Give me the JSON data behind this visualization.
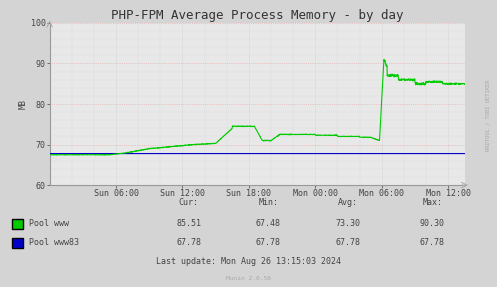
{
  "title": "PHP-FPM Average Process Memory - by day",
  "ylabel": "MB",
  "bg_color": "#d4d4d4",
  "plot_bg_color": "#e8e8e8",
  "ylim": [
    60,
    100
  ],
  "yticks": [
    60,
    70,
    80,
    90,
    100
  ],
  "xtick_labels": [
    "Sun 06:00",
    "Sun 12:00",
    "Sun 18:00",
    "Mon 00:00",
    "Mon 06:00",
    "Mon 12:00"
  ],
  "pool_www_color": "#00cc00",
  "pool_www83_color": "#0000cc",
  "pool_www_label": "Pool www",
  "pool_www83_label": "Pool www83",
  "stats_cur_www": "85.51",
  "stats_min_www": "67.48",
  "stats_avg_www": "73.30",
  "stats_max_www": "90.30",
  "stats_cur_www83": "67.78",
  "stats_min_www83": "67.78",
  "stats_avg_www83": "67.78",
  "stats_max_www83": "67.78",
  "last_update": "Last update: Mon Aug 26 13:15:03 2024",
  "munin_label": "Munin 2.0.56",
  "rrdtool_label": "RRDTOOL / TOBI OETIKER",
  "title_fontsize": 9,
  "axis_fontsize": 6,
  "stats_fontsize": 6,
  "total_hours": 37.5,
  "xtick_hours": [
    6,
    12,
    18,
    24,
    30,
    36
  ]
}
